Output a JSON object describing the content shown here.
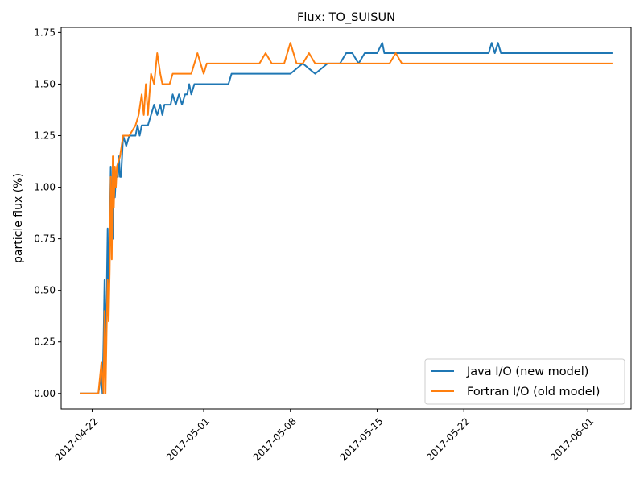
{
  "chart_data": {
    "type": "line",
    "title": "Flux: TO_SUISUN",
    "xlabel": "",
    "ylabel": "particle flux (%)",
    "xlim": [
      "2017-04-19T12:00",
      "2017-06-04T12:00"
    ],
    "ylim": [
      -0.075,
      1.775
    ],
    "yticks": [
      0.0,
      0.25,
      0.5,
      0.75,
      1.0,
      1.25,
      1.5,
      1.75
    ],
    "ytick_labels": [
      "0.00",
      "0.25",
      "0.50",
      "0.75",
      "1.00",
      "1.25",
      "1.50",
      "1.75"
    ],
    "xticks": [
      "2017-04-22",
      "2017-05-01",
      "2017-05-08",
      "2017-05-15",
      "2017-05-22",
      "2017-06-01"
    ],
    "xtick_labels": [
      "2017-04-22",
      "2017-05-01",
      "2017-05-08",
      "2017-05-15",
      "2017-05-22",
      "2017-06-01"
    ],
    "grid": false,
    "legend": {
      "placement": "lower-right"
    },
    "series": [
      {
        "name": "Java I/O (new model)",
        "color": "#1f77b4",
        "x": [
          "2017-04-21T00:00",
          "2017-04-22T12:00",
          "2017-04-22T18:00",
          "2017-04-22T20:00",
          "2017-04-22T22:00",
          "2017-04-23T00:00",
          "2017-04-23T02:00",
          "2017-04-23T04:00",
          "2017-04-23T06:00",
          "2017-04-23T08:00",
          "2017-04-23T10:00",
          "2017-04-23T12:00",
          "2017-04-23T14:00",
          "2017-04-23T16:00",
          "2017-04-23T18:00",
          "2017-04-23T20:00",
          "2017-04-23T22:00",
          "2017-04-24T00:00",
          "2017-04-24T02:00",
          "2017-04-24T04:00",
          "2017-04-24T06:00",
          "2017-04-24T08:00",
          "2017-04-24T12:00",
          "2017-04-24T18:00",
          "2017-04-25T00:00",
          "2017-04-25T12:00",
          "2017-04-25T16:00",
          "2017-04-25T20:00",
          "2017-04-26T00:00",
          "2017-04-26T04:00",
          "2017-04-26T08:00",
          "2017-04-26T12:00",
          "2017-04-26T18:00",
          "2017-04-27T00:00",
          "2017-04-27T06:00",
          "2017-04-27T12:00",
          "2017-04-27T16:00",
          "2017-04-27T20:00",
          "2017-04-28T00:00",
          "2017-04-28T04:00",
          "2017-04-28T08:00",
          "2017-04-28T12:00",
          "2017-04-28T18:00",
          "2017-04-29T00:00",
          "2017-04-29T06:00",
          "2017-04-29T12:00",
          "2017-04-29T16:00",
          "2017-04-29T20:00",
          "2017-04-30T00:00",
          "2017-04-30T06:00",
          "2017-04-30T12:00",
          "2017-04-30T18:00",
          "2017-05-01T00:00",
          "2017-05-01T06:00",
          "2017-05-01T12:00",
          "2017-05-01T18:00",
          "2017-05-02T00:00",
          "2017-05-02T06:00",
          "2017-05-02T12:00",
          "2017-05-02T18:00",
          "2017-05-03T00:00",
          "2017-05-03T06:00",
          "2017-05-03T12:00",
          "2017-05-04T00:00",
          "2017-05-05T00:00",
          "2017-05-06T00:00",
          "2017-05-07T00:00",
          "2017-05-07T06:00",
          "2017-05-07T12:00",
          "2017-05-08T00:00",
          "2017-05-09T00:00",
          "2017-05-10T00:00",
          "2017-05-11T00:00",
          "2017-05-11T12:00",
          "2017-05-12T00:00",
          "2017-05-12T12:00",
          "2017-05-13T00:00",
          "2017-05-13T12:00",
          "2017-05-14T00:00",
          "2017-05-14T12:00",
          "2017-05-15T00:00",
          "2017-05-15T10:00",
          "2017-05-15T14:00",
          "2017-05-16T00:00",
          "2017-05-18T00:00",
          "2017-05-20T00:00",
          "2017-05-22T00:00",
          "2017-05-24T00:00",
          "2017-05-24T06:00",
          "2017-05-24T12:00",
          "2017-05-24T18:00",
          "2017-05-25T00:00",
          "2017-05-26T00:00",
          "2017-05-28T00:00",
          "2017-05-30T00:00",
          "2017-06-01T00:00",
          "2017-06-03T00:00"
        ],
        "y": [
          0.0,
          0.0,
          0.1,
          0.0,
          0.25,
          0.55,
          0.2,
          0.45,
          0.8,
          0.5,
          0.75,
          1.1,
          0.85,
          0.75,
          1.0,
          0.95,
          1.05,
          1.05,
          1.05,
          1.15,
          1.05,
          1.05,
          1.25,
          1.2,
          1.25,
          1.25,
          1.3,
          1.25,
          1.3,
          1.3,
          1.3,
          1.3,
          1.35,
          1.4,
          1.35,
          1.4,
          1.35,
          1.4,
          1.4,
          1.4,
          1.4,
          1.45,
          1.4,
          1.45,
          1.4,
          1.45,
          1.45,
          1.5,
          1.45,
          1.5,
          1.5,
          1.5,
          1.5,
          1.5,
          1.5,
          1.5,
          1.5,
          1.5,
          1.5,
          1.5,
          1.5,
          1.55,
          1.55,
          1.55,
          1.55,
          1.55,
          1.55,
          1.55,
          1.55,
          1.55,
          1.6,
          1.55,
          1.6,
          1.6,
          1.6,
          1.65,
          1.65,
          1.6,
          1.65,
          1.65,
          1.65,
          1.7,
          1.65,
          1.65,
          1.65,
          1.65,
          1.65,
          1.65,
          1.7,
          1.65,
          1.7,
          1.65,
          1.65,
          1.65,
          1.65,
          1.65,
          1.65
        ]
      },
      {
        "name": "Fortran I/O (old model)",
        "color": "#ff7f0e",
        "x": [
          "2017-04-21T00:00",
          "2017-04-22T12:00",
          "2017-04-22T18:00",
          "2017-04-22T22:00",
          "2017-04-23T00:00",
          "2017-04-23T02:00",
          "2017-04-23T04:00",
          "2017-04-23T06:00",
          "2017-04-23T08:00",
          "2017-04-23T10:00",
          "2017-04-23T12:00",
          "2017-04-23T14:00",
          "2017-04-23T16:00",
          "2017-04-23T18:00",
          "2017-04-23T20:00",
          "2017-04-23T22:00",
          "2017-04-24T00:00",
          "2017-04-24T06:00",
          "2017-04-24T12:00",
          "2017-04-25T00:00",
          "2017-04-25T12:00",
          "2017-04-25T18:00",
          "2017-04-26T00:00",
          "2017-04-26T04:00",
          "2017-04-26T08:00",
          "2017-04-26T12:00",
          "2017-04-26T18:00",
          "2017-04-27T00:00",
          "2017-04-27T06:00",
          "2017-04-27T12:00",
          "2017-04-27T16:00",
          "2017-04-27T20:00",
          "2017-04-28T00:00",
          "2017-04-28T06:00",
          "2017-04-28T12:00",
          "2017-04-29T00:00",
          "2017-04-29T12:00",
          "2017-04-30T00:00",
          "2017-04-30T12:00",
          "2017-05-01T00:00",
          "2017-05-01T06:00",
          "2017-05-01T12:00",
          "2017-05-02T00:00",
          "2017-05-03T00:00",
          "2017-05-04T00:00",
          "2017-05-05T00:00",
          "2017-05-05T12:00",
          "2017-05-06T00:00",
          "2017-05-06T12:00",
          "2017-05-07T00:00",
          "2017-05-07T12:00",
          "2017-05-08T00:00",
          "2017-05-08T12:00",
          "2017-05-09T00:00",
          "2017-05-09T12:00",
          "2017-05-10T00:00",
          "2017-05-12T00:00",
          "2017-05-14T00:00",
          "2017-05-16T00:00",
          "2017-05-16T12:00",
          "2017-05-17T00:00",
          "2017-05-20T00:00",
          "2017-05-25T00:00",
          "2017-05-30T00:00",
          "2017-06-03T00:00"
        ],
        "y": [
          0.0,
          0.0,
          0.15,
          0.0,
          0.4,
          0.0,
          0.3,
          0.55,
          0.35,
          0.6,
          1.05,
          0.65,
          1.15,
          0.9,
          1.1,
          1.0,
          1.1,
          1.15,
          1.25,
          1.25,
          1.3,
          1.35,
          1.45,
          1.35,
          1.5,
          1.35,
          1.55,
          1.5,
          1.65,
          1.55,
          1.5,
          1.5,
          1.5,
          1.5,
          1.55,
          1.55,
          1.55,
          1.55,
          1.65,
          1.55,
          1.6,
          1.6,
          1.6,
          1.6,
          1.6,
          1.6,
          1.6,
          1.65,
          1.6,
          1.6,
          1.6,
          1.7,
          1.6,
          1.6,
          1.65,
          1.6,
          1.6,
          1.6,
          1.6,
          1.65,
          1.6,
          1.6,
          1.6,
          1.6,
          1.6
        ]
      }
    ]
  }
}
